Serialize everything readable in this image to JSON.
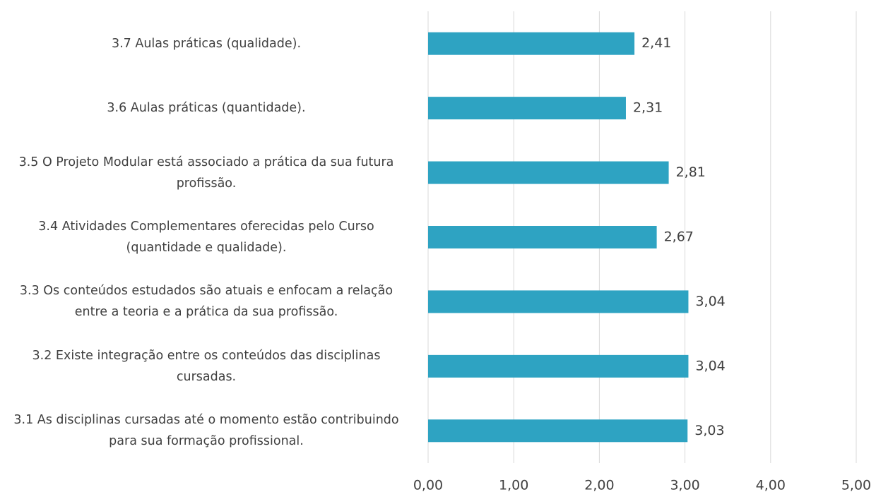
{
  "chart_data": {
    "type": "bar",
    "orientation": "horizontal",
    "categories": [
      "3.7 Aulas práticas (qualidade).",
      "3.6 Aulas práticas (quantidade).",
      "3.5 O Projeto Modular está associado a prática da sua futura profissão.",
      "3.4 Atividades Complementares oferecidas pelo Curso (quantidade e qualidade).",
      "3.3 Os conteúdos estudados são atuais e enfocam a relação entre a teoria e a prática da sua profissão.",
      "3.2 Existe integração entre os conteúdos das disciplinas cursadas.",
      "3.1 As disciplinas cursadas até o momento estão contribuindo para sua formação profissional."
    ],
    "values": [
      2.41,
      2.31,
      2.81,
      2.67,
      3.04,
      3.04,
      3.03
    ],
    "value_labels": [
      "2,41",
      "2,31",
      "2,81",
      "2,67",
      "3,04",
      "3,04",
      "3,03"
    ],
    "color": "#2ea3c2",
    "xlim": [
      0,
      5
    ],
    "xticks": [
      {
        "value": 0,
        "label": "0,00"
      },
      {
        "value": 1,
        "label": "1,00"
      },
      {
        "value": 2,
        "label": "2,00"
      },
      {
        "value": 3,
        "label": "3,00"
      },
      {
        "value": 4,
        "label": "4,00"
      },
      {
        "value": 5,
        "label": "5,00"
      }
    ],
    "grid": true
  }
}
